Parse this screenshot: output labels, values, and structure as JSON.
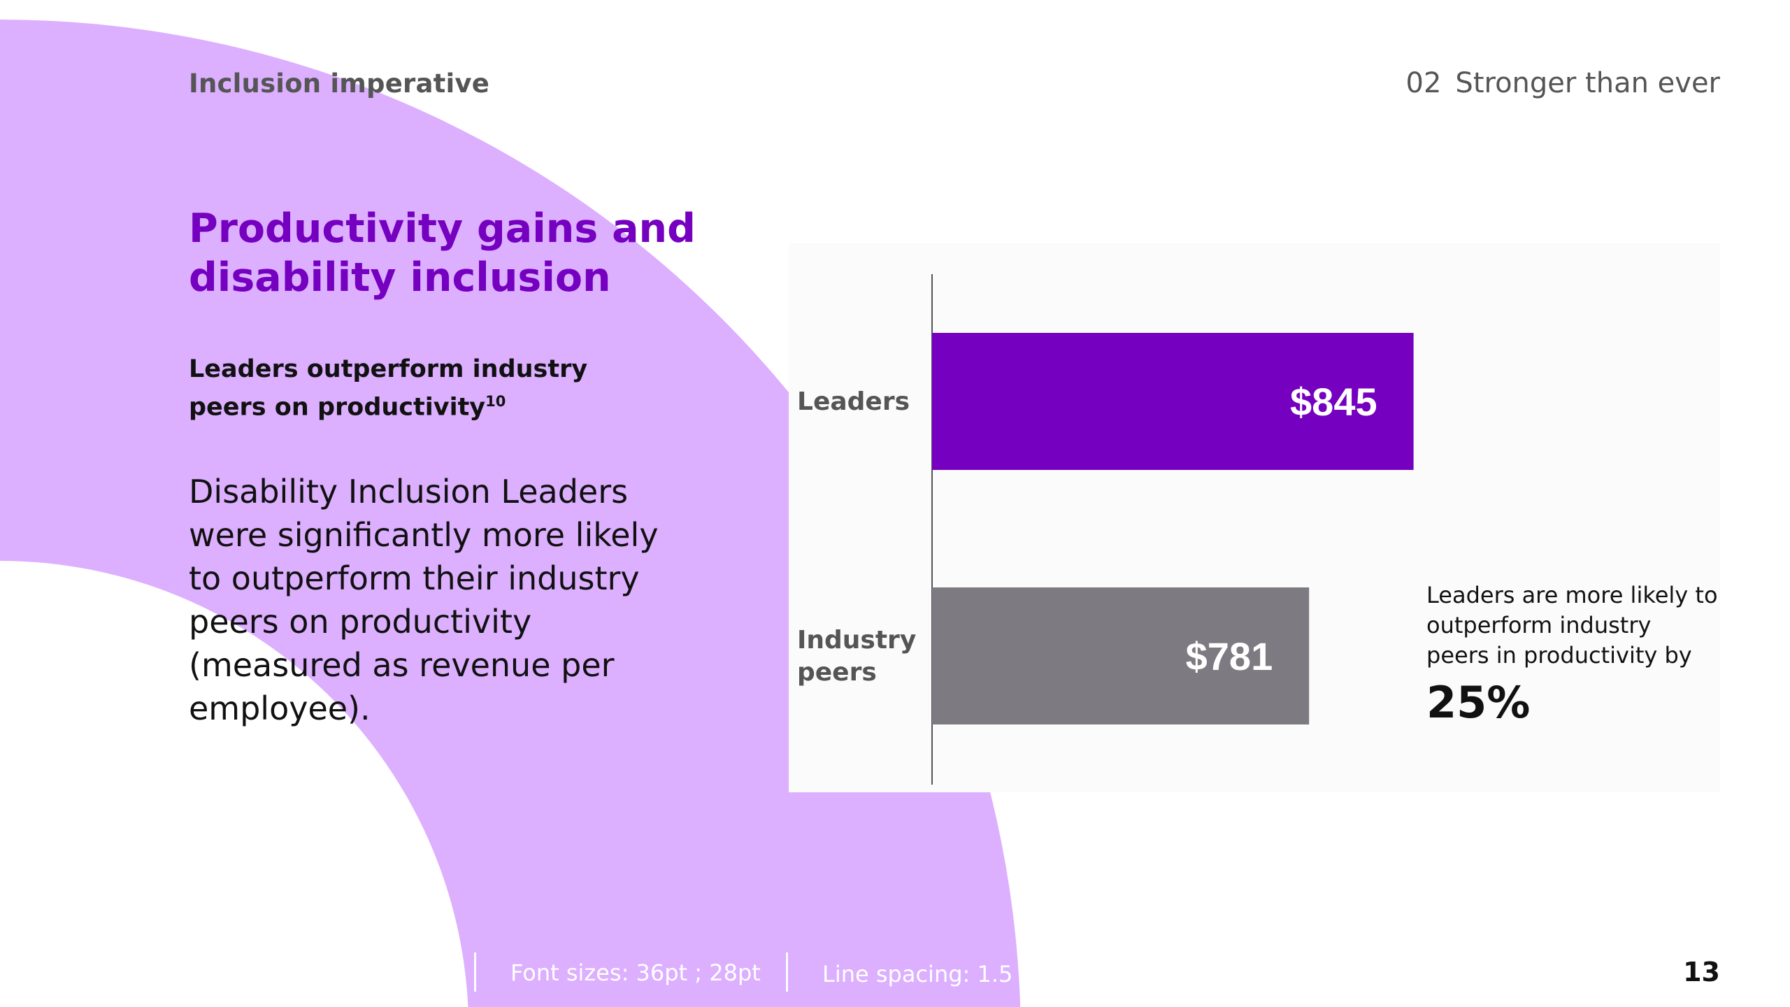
{
  "colors": {
    "accent": "#7500c0",
    "decor_arc": "#dcafff",
    "leaders_bar": "#7500c0",
    "peers_bar": "#7e7a81",
    "chart_bg": "#fbfbfb"
  },
  "header": {
    "section_left": "Inclusion imperative",
    "section_number": "02",
    "section_title": "Stronger than ever"
  },
  "content": {
    "title": "Productivity gains and disability inclusion",
    "subtitle": "Leaders outperform industry peers on productivity",
    "subtitle_footnote": "10",
    "body": "Disability Inclusion Leaders were significantly more likely to outperform their industry peers on productivity (measured as revenue per employee)."
  },
  "chart_data": {
    "type": "bar",
    "orientation": "horizontal",
    "categories": [
      "Leaders",
      "Industry peers"
    ],
    "values": [
      845,
      781
    ],
    "value_labels": [
      "$845",
      "$781"
    ],
    "axis_min": 550,
    "axis_max": 900,
    "title": "",
    "xlabel": "",
    "ylabel": ""
  },
  "callout": {
    "text": "Leaders are more likely to outperform industry peers in productivity by",
    "value": "25%"
  },
  "footer": {
    "font_sizes": "Font sizes: 36pt ; 28pt",
    "line_spacing": "Line spacing: 1.5",
    "page_number": "13"
  }
}
